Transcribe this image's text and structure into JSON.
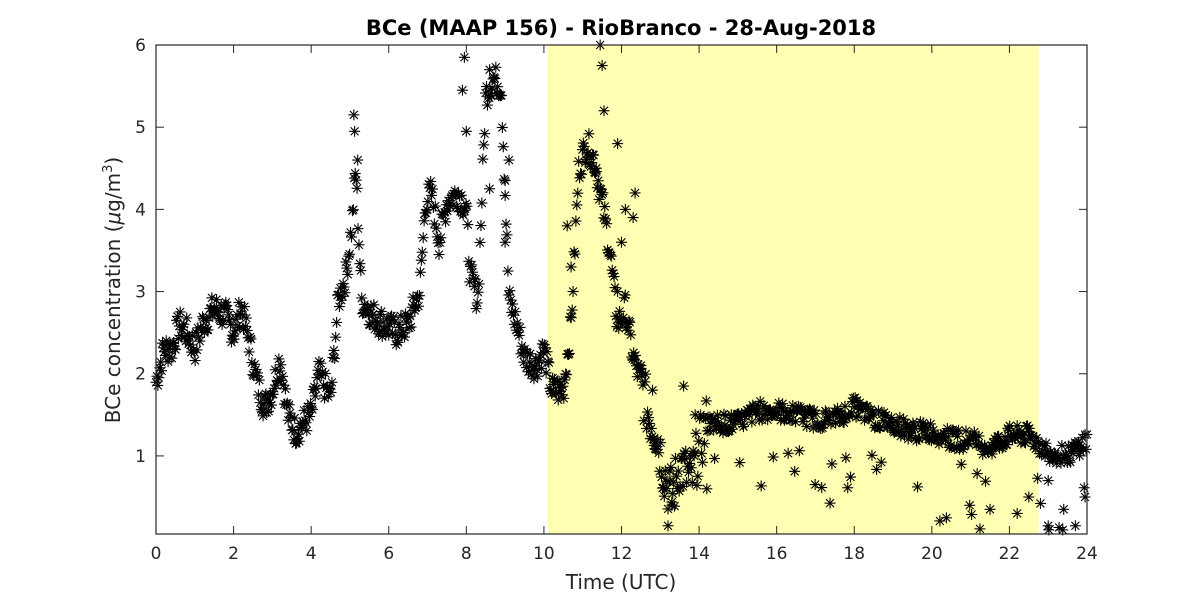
{
  "chart_data": {
    "type": "scatter",
    "title": "BCe (MAAP 156) - RioBranco - 28-Aug-2018",
    "xlabel": "Time (UTC)",
    "ylabel_prefix": "BCe concentration (",
    "ylabel_mu": "μ",
    "ylabel_unit": "g/m",
    "ylabel_exp": "3",
    "ylabel_suffix": ")",
    "xlim": [
      0,
      24
    ],
    "ylim": [
      0.05,
      6.0
    ],
    "xticks": [
      0,
      2,
      4,
      6,
      8,
      10,
      12,
      14,
      16,
      18,
      20,
      22,
      24
    ],
    "xtick_labels": [
      "0",
      "2",
      "4",
      "6",
      "8",
      "10",
      "12",
      "14",
      "16",
      "18",
      "20",
      "22",
      "24"
    ],
    "yticks": [
      1,
      2,
      3,
      4,
      5,
      6
    ],
    "ytick_labels": [
      "1",
      "2",
      "3",
      "4",
      "5",
      "6"
    ],
    "grid": false,
    "marker": "asterisk",
    "colors": {
      "marker": "#000000",
      "highlight": "#ffffb3",
      "axes": "#262626"
    },
    "highlight_span": [
      10.1,
      22.75
    ],
    "anchors": [
      [
        0.0,
        1.9
      ],
      [
        0.2,
        2.3
      ],
      [
        0.4,
        2.3
      ],
      [
        0.6,
        2.6
      ],
      [
        0.8,
        2.5
      ],
      [
        1.0,
        2.3
      ],
      [
        1.2,
        2.6
      ],
      [
        1.5,
        2.8
      ],
      [
        1.8,
        2.7
      ],
      [
        2.0,
        2.5
      ],
      [
        2.2,
        2.8
      ],
      [
        2.4,
        2.4
      ],
      [
        2.6,
        1.9
      ],
      [
        2.8,
        1.6
      ],
      [
        3.0,
        1.8
      ],
      [
        3.2,
        2.2
      ],
      [
        3.4,
        1.5
      ],
      [
        3.6,
        1.3
      ],
      [
        3.8,
        1.4
      ],
      [
        4.0,
        1.5
      ],
      [
        4.2,
        2.0
      ],
      [
        4.5,
        1.7
      ],
      [
        4.7,
        2.9
      ],
      [
        4.9,
        3.2
      ],
      [
        5.05,
        3.8
      ],
      [
        5.15,
        4.5
      ],
      [
        5.3,
        2.9
      ],
      [
        5.6,
        2.7
      ],
      [
        5.9,
        2.6
      ],
      [
        6.2,
        2.5
      ],
      [
        6.5,
        2.6
      ],
      [
        6.8,
        3.0
      ],
      [
        6.95,
        4.1
      ],
      [
        7.1,
        4.2
      ],
      [
        7.3,
        3.6
      ],
      [
        7.5,
        4.1
      ],
      [
        7.8,
        4.2
      ],
      [
        8.0,
        4.0
      ],
      [
        8.1,
        3.2
      ],
      [
        8.3,
        2.9
      ],
      [
        8.5,
        5.4
      ],
      [
        8.7,
        5.6
      ],
      [
        8.9,
        5.5
      ],
      [
        9.1,
        2.9
      ],
      [
        9.3,
        2.6
      ],
      [
        9.5,
        2.2
      ],
      [
        9.8,
        2.1
      ],
      [
        10.0,
        2.3
      ],
      [
        10.2,
        1.8
      ],
      [
        10.5,
        1.8
      ],
      [
        10.7,
        2.6
      ],
      [
        10.9,
        4.5
      ],
      [
        11.1,
        4.8
      ],
      [
        11.3,
        4.6
      ],
      [
        11.5,
        4.1
      ],
      [
        11.7,
        3.5
      ],
      [
        11.9,
        2.6
      ],
      [
        12.1,
        2.8
      ],
      [
        12.3,
        2.2
      ],
      [
        12.5,
        1.9
      ],
      [
        12.7,
        1.5
      ],
      [
        12.9,
        1.3
      ],
      [
        13.1,
        0.8
      ],
      [
        13.3,
        0.5
      ],
      [
        13.5,
        0.9
      ],
      [
        13.8,
        0.7
      ],
      [
        14.0,
        1.1
      ],
      [
        14.2,
        1.4
      ],
      [
        14.6,
        1.4
      ],
      [
        15.0,
        1.4
      ],
      [
        15.5,
        1.55
      ],
      [
        16.0,
        1.55
      ],
      [
        16.5,
        1.5
      ],
      [
        17.0,
        1.45
      ],
      [
        17.5,
        1.45
      ],
      [
        18.0,
        1.6
      ],
      [
        18.5,
        1.45
      ],
      [
        19.0,
        1.4
      ],
      [
        19.5,
        1.3
      ],
      [
        20.0,
        1.3
      ],
      [
        20.5,
        1.2
      ],
      [
        21.0,
        1.2
      ],
      [
        21.5,
        1.1
      ],
      [
        22.0,
        1.25
      ],
      [
        22.5,
        1.25
      ],
      [
        23.0,
        1.05
      ],
      [
        23.5,
        1.0
      ],
      [
        24.0,
        1.2
      ]
    ],
    "outliers": [
      [
        5.1,
        5.15
      ],
      [
        5.12,
        4.95
      ],
      [
        5.2,
        4.6
      ],
      [
        7.95,
        5.85
      ],
      [
        7.9,
        5.45
      ],
      [
        8.0,
        4.95
      ],
      [
        8.6,
        5.7
      ],
      [
        9.1,
        4.6
      ],
      [
        11.45,
        6.0
      ],
      [
        11.5,
        5.75
      ],
      [
        11.55,
        5.2
      ],
      [
        11.35,
        4.5
      ],
      [
        11.9,
        4.8
      ],
      [
        12.1,
        4.0
      ],
      [
        12.3,
        3.9
      ],
      [
        12.35,
        4.2
      ],
      [
        12.0,
        3.6
      ],
      [
        11.9,
        3.0
      ],
      [
        12.5,
        2.1
      ],
      [
        12.8,
        1.8
      ],
      [
        13.2,
        0.15
      ],
      [
        13.3,
        0.4
      ],
      [
        13.6,
        1.85
      ],
      [
        13.9,
        1.5
      ],
      [
        14.2,
        0.6
      ],
      [
        21.5,
        0.35
      ],
      [
        22.2,
        0.3
      ],
      [
        22.5,
        0.5
      ],
      [
        23.0,
        0.15
      ],
      [
        23.4,
        0.35
      ],
      [
        23.7,
        0.15
      ],
      [
        23.95,
        0.5
      ],
      [
        23.0,
        0.7
      ],
      [
        10.6,
        3.8
      ],
      [
        10.7,
        3.3
      ],
      [
        9.0,
        3.6
      ],
      [
        8.6,
        4.25
      ],
      [
        9.0,
        4.35
      ]
    ]
  }
}
